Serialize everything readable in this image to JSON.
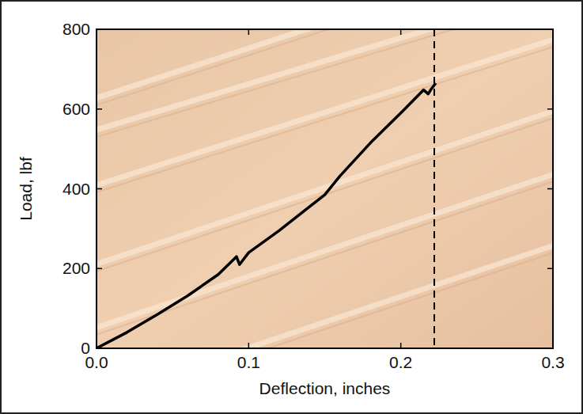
{
  "chart_data": {
    "type": "line",
    "x_label": "Deflection, inches",
    "y_label": "Load, lbf",
    "x": [
      0.0,
      0.02,
      0.04,
      0.06,
      0.08,
      0.092,
      0.094,
      0.1,
      0.12,
      0.14,
      0.15,
      0.16,
      0.18,
      0.2,
      0.215,
      0.218,
      0.22,
      0.223
    ],
    "series": [
      {
        "name": "Load",
        "color": "#000000",
        "values": [
          0,
          40,
          85,
          132,
          185,
          230,
          210,
          240,
          295,
          355,
          385,
          432,
          515,
          590,
          648,
          638,
          650,
          665
        ]
      }
    ],
    "vline": 0.222,
    "xlim": [
      0,
      0.3
    ],
    "xticks": [
      {
        "value": 0,
        "label": "0.0"
      },
      {
        "value": 0.1,
        "label": "0.1"
      },
      {
        "value": 0.2,
        "label": "0.2"
      },
      {
        "value": 0.3,
        "label": "0.3"
      }
    ],
    "ylim": [
      0,
      800
    ],
    "yticks": [
      0,
      200,
      400,
      600,
      800
    ],
    "grid": false
  }
}
